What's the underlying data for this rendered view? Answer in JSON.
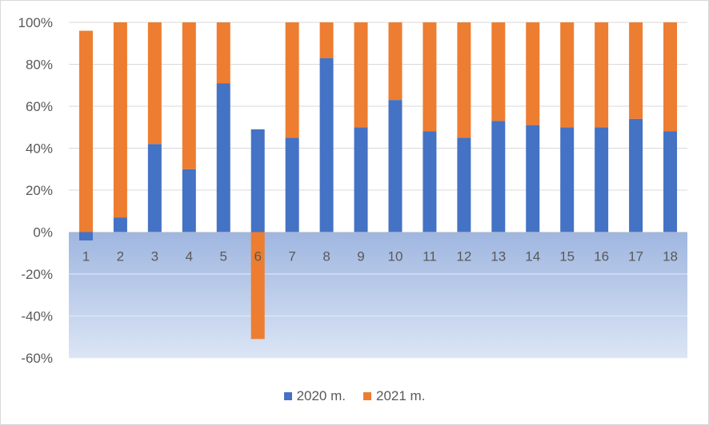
{
  "chart_data": {
    "type": "bar",
    "stacked": true,
    "categories": [
      "1",
      "2",
      "3",
      "4",
      "5",
      "6",
      "7",
      "8",
      "9",
      "10",
      "11",
      "12",
      "13",
      "14",
      "15",
      "16",
      "17",
      "18"
    ],
    "series": [
      {
        "name": "2020 m.",
        "color": "#4472C4",
        "values": [
          -4,
          7,
          42,
          30,
          71,
          49,
          45,
          83,
          50,
          63,
          48,
          45,
          53,
          51,
          50,
          50,
          54,
          48
        ]
      },
      {
        "name": "2021 m.",
        "color": "#ED7D31",
        "values": [
          96,
          93,
          58,
          70,
          29,
          -51,
          55,
          17,
          50,
          37,
          52,
          55,
          47,
          49,
          50,
          50,
          46,
          52
        ]
      }
    ],
    "ylim": [
      -60,
      100
    ],
    "yticks": [
      "100%",
      "80%",
      "60%",
      "40%",
      "20%",
      "0%",
      "-20%",
      "-40%",
      "-60%"
    ],
    "ytick_values": [
      100,
      80,
      60,
      40,
      20,
      0,
      -20,
      -40,
      -60
    ],
    "grid": true,
    "legend_position": "bottom",
    "title": "",
    "xlabel": "",
    "ylabel": ""
  }
}
